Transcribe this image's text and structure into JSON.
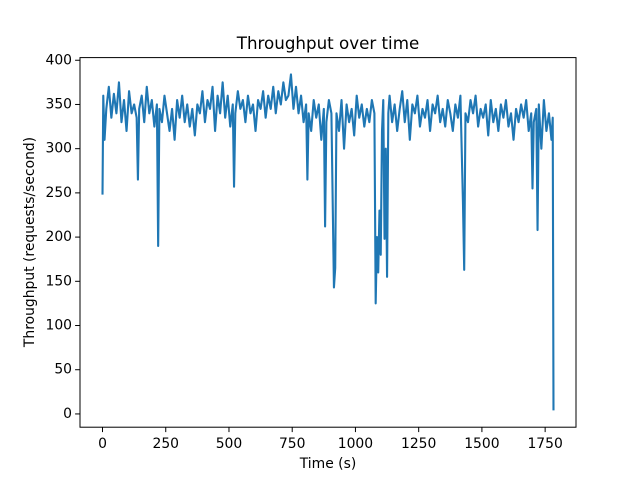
{
  "chart_data": {
    "type": "line",
    "title": "Throughput over time",
    "x_label": "Time (s)",
    "y_label": "Throughput (requests/second)",
    "x": [
      0,
      3,
      8,
      15,
      25,
      35,
      45,
      55,
      65,
      75,
      85,
      95,
      105,
      115,
      125,
      135,
      140,
      145,
      155,
      165,
      175,
      185,
      195,
      205,
      215,
      220,
      225,
      235,
      245,
      255,
      265,
      275,
      285,
      295,
      305,
      315,
      325,
      335,
      345,
      355,
      365,
      375,
      385,
      395,
      405,
      415,
      425,
      435,
      445,
      455,
      465,
      475,
      485,
      495,
      505,
      515,
      520,
      525,
      535,
      545,
      555,
      565,
      575,
      585,
      595,
      605,
      615,
      625,
      635,
      645,
      655,
      665,
      675,
      685,
      695,
      705,
      715,
      725,
      735,
      745,
      755,
      765,
      775,
      785,
      795,
      805,
      810,
      815,
      825,
      835,
      845,
      855,
      865,
      875,
      880,
      885,
      895,
      905,
      915,
      920,
      925,
      935,
      945,
      955,
      965,
      975,
      985,
      995,
      1005,
      1015,
      1025,
      1035,
      1045,
      1055,
      1065,
      1075,
      1080,
      1085,
      1090,
      1095,
      1100,
      1105,
      1110,
      1115,
      1120,
      1125,
      1130,
      1135,
      1145,
      1155,
      1165,
      1175,
      1185,
      1195,
      1205,
      1215,
      1225,
      1235,
      1245,
      1255,
      1265,
      1275,
      1285,
      1295,
      1305,
      1315,
      1325,
      1335,
      1345,
      1355,
      1365,
      1375,
      1385,
      1395,
      1405,
      1415,
      1425,
      1430,
      1435,
      1445,
      1455,
      1465,
      1475,
      1485,
      1495,
      1505,
      1515,
      1525,
      1535,
      1545,
      1555,
      1565,
      1575,
      1585,
      1595,
      1605,
      1615,
      1625,
      1635,
      1645,
      1655,
      1665,
      1675,
      1685,
      1695,
      1700,
      1705,
      1715,
      1720,
      1725,
      1735,
      1745,
      1755,
      1765,
      1775,
      1780,
      1783
    ],
    "series": [
      {
        "color": "#1f77b4",
        "values": [
          248,
          360,
          310,
          345,
          370,
          335,
          362,
          340,
          375,
          330,
          355,
          320,
          365,
          340,
          350,
          335,
          265,
          345,
          360,
          330,
          370,
          340,
          355,
          325,
          350,
          190,
          345,
          330,
          360,
          340,
          320,
          345,
          310,
          355,
          335,
          360,
          330,
          350,
          325,
          345,
          315,
          350,
          340,
          365,
          330,
          355,
          345,
          370,
          320,
          360,
          340,
          375,
          335,
          360,
          325,
          350,
          257,
          340,
          365,
          345,
          355,
          330,
          360,
          340,
          350,
          320,
          355,
          345,
          365,
          335,
          360,
          345,
          370,
          340,
          365,
          350,
          375,
          355,
          360,
          384,
          345,
          370,
          340,
          360,
          330,
          350,
          265,
          340,
          320,
          355,
          335,
          350,
          310,
          345,
          212,
          330,
          355,
          340,
          143,
          165,
          340,
          320,
          355,
          300,
          350,
          330,
          345,
          315,
          360,
          335,
          350,
          325,
          345,
          330,
          355,
          340,
          125,
          200,
          160,
          230,
          180,
          320,
          355,
          198,
          300,
          155,
          340,
          360,
          330,
          350,
          320,
          345,
          365,
          330,
          355,
          310,
          350,
          340,
          360,
          325,
          345,
          335,
          355,
          320,
          350,
          340,
          360,
          330,
          345,
          325,
          355,
          340,
          320,
          350,
          335,
          360,
          240,
          163,
          340,
          330,
          355,
          340,
          360,
          325,
          345,
          335,
          350,
          315,
          355,
          330,
          345,
          320,
          350,
          335,
          355,
          325,
          340,
          310,
          345,
          330,
          350,
          335,
          355,
          320,
          340,
          255,
          330,
          345,
          208,
          350,
          300,
          355,
          320,
          340,
          310,
          335,
          4
        ]
      }
    ],
    "xlim": [
      -89,
      1872
    ],
    "ylim": [
      -15,
      403
    ],
    "xticks": [
      0,
      250,
      500,
      750,
      1000,
      1250,
      1500,
      1750
    ],
    "yticks": [
      0,
      50,
      100,
      150,
      200,
      250,
      300,
      350,
      400
    ],
    "grid": false
  }
}
